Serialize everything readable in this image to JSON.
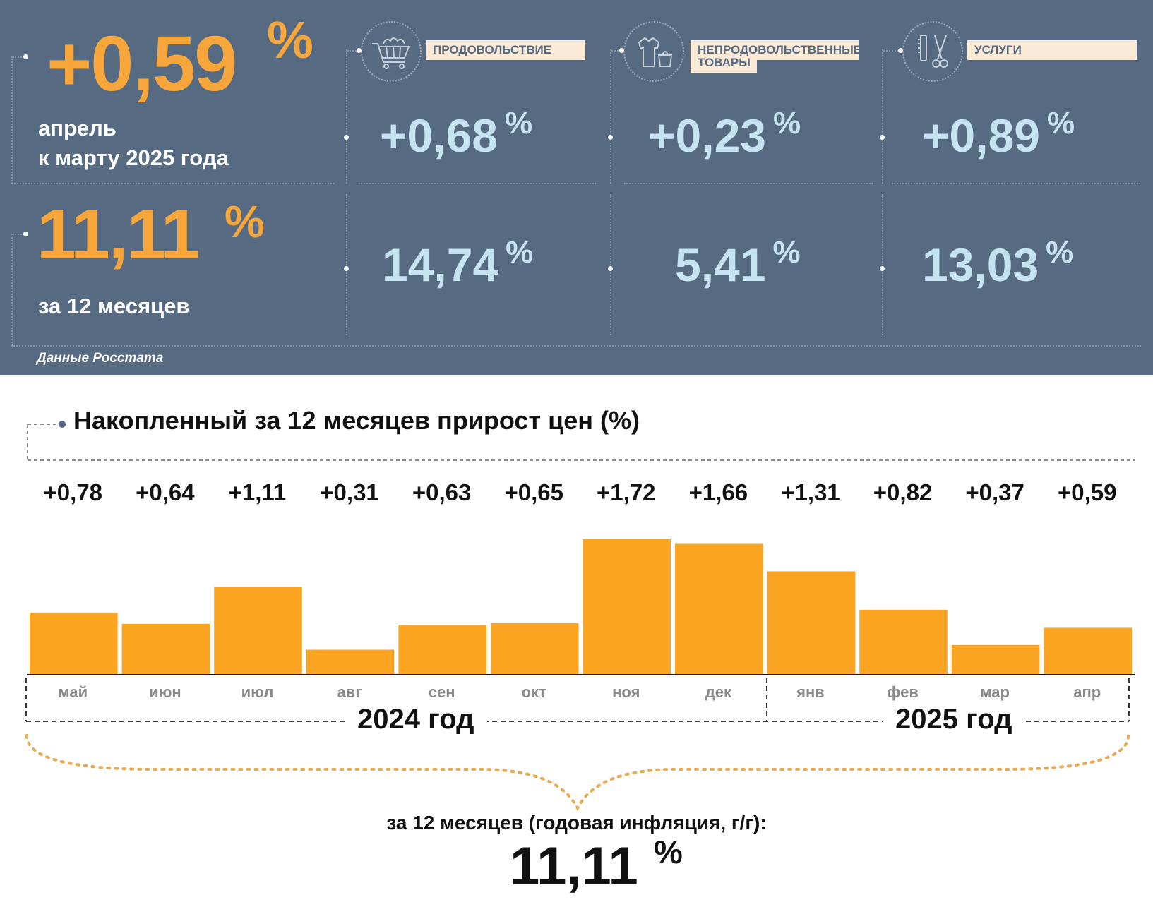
{
  "summary": {
    "monthly": {
      "value": "+0,59",
      "unit": "%",
      "line1": "апрель",
      "line2": "к марту 2025 года"
    },
    "annual": {
      "value": "11,11",
      "unit": "%",
      "caption": "за 12 месяцев"
    },
    "source": "Данные Росстата"
  },
  "categories": [
    {
      "icon": "shopping-cart-icon",
      "label": "ПРОДОВОЛЬСТВИЕ",
      "monthly": "+0,68",
      "annual": "14,74",
      "unit": "%"
    },
    {
      "icon": "clothing-bag-icon",
      "label_line1": "НЕПРОДОВОЛЬСТВЕННЫЕ",
      "label_line2": "ТОВАРЫ",
      "monthly": "+0,23",
      "annual": "5,41",
      "unit": "%"
    },
    {
      "icon": "scissors-comb-icon",
      "label": "УСЛУГИ",
      "monthly": "+0,89",
      "annual": "13,03",
      "unit": "%"
    }
  ],
  "chart_data": {
    "type": "bar",
    "title": "Накопленный за 12 месяцев прирост цен (%)",
    "categories": [
      "май",
      "июн",
      "июл",
      "авг",
      "сен",
      "окт",
      "ноя",
      "дек",
      "янв",
      "фев",
      "мар",
      "апр"
    ],
    "values": [
      0.78,
      0.64,
      1.11,
      0.31,
      0.63,
      0.65,
      1.72,
      1.66,
      1.31,
      0.82,
      0.37,
      0.59
    ],
    "value_labels": [
      "+0,78",
      "+0,64",
      "+1,11",
      "+0,31",
      "+0,63",
      "+0,65",
      "+1,72",
      "+1,66",
      "+1,31",
      "+0,82",
      "+0,37",
      "+0,59"
    ],
    "years": [
      {
        "label": "2024 год",
        "months": 8
      },
      {
        "label": "2025 год",
        "months": 4
      }
    ],
    "bar_color": "#fba523",
    "ylim": [
      0,
      1.8
    ],
    "grid": false,
    "annual_caption": "за 12 месяцев (годовая инфляция, г/г):",
    "annual_value": "11,11",
    "annual_unit": "%"
  },
  "colors": {
    "panel_bg": "#566a81",
    "accent_orange": "#f7a63c",
    "value_blue": "#c6e3f1",
    "label_bg": "#fbead6",
    "bar": "#fba523",
    "brace": "#e9aa52"
  }
}
